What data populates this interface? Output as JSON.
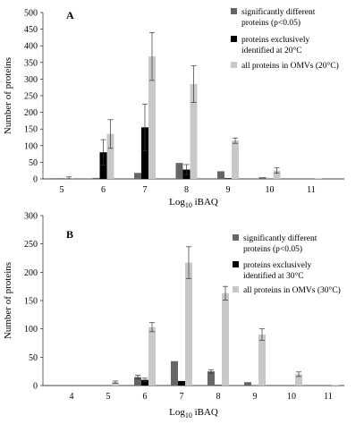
{
  "chart_data": [
    {
      "type": "bar",
      "panel": "A",
      "ylabel": "Number of proteins",
      "xlabel_base": "Log",
      "xlabel_sub": "10",
      "xlabel_rest": " iBAQ",
      "ylim": [
        0,
        500
      ],
      "yticks": [
        0,
        50,
        100,
        150,
        200,
        250,
        300,
        350,
        400,
        450,
        500
      ],
      "categories": [
        "5",
        "6",
        "7",
        "8",
        "9",
        "10",
        "11"
      ],
      "series": [
        {
          "name_lines": [
            "significantly different",
            "proteins (p<0.05)"
          ],
          "color": "#666666",
          "values": [
            2,
            3,
            18,
            48,
            23,
            5,
            0
          ],
          "errors": [
            0,
            0,
            0,
            0,
            0,
            0,
            0
          ]
        },
        {
          "name_lines": [
            "proteins exclusively",
            "identified at 20°C"
          ],
          "color": "#000000",
          "values": [
            1,
            80,
            155,
            28,
            2,
            0,
            0
          ],
          "errors": [
            0,
            38,
            70,
            15,
            0,
            0,
            0
          ]
        },
        {
          "name_lines": [
            "all proteins in OMVs (20°C)"
          ],
          "color": "#c8c8c8",
          "values": [
            3,
            135,
            368,
            285,
            115,
            25,
            1
          ],
          "errors": [
            3,
            43,
            72,
            55,
            8,
            8,
            0
          ]
        }
      ]
    },
    {
      "type": "bar",
      "panel": "B",
      "ylabel": "Number of proteins",
      "xlabel_base": "Log",
      "xlabel_sub": "10",
      "xlabel_rest": " iBAQ",
      "ylim": [
        0,
        300
      ],
      "yticks": [
        0,
        50,
        100,
        150,
        200,
        250,
        300
      ],
      "categories": [
        "4",
        "5",
        "6",
        "7",
        "8",
        "9",
        "10",
        "11"
      ],
      "series": [
        {
          "name_lines": [
            "significantly different",
            "proteins (p<0.05)"
          ],
          "color": "#666666",
          "values": [
            0,
            1,
            15,
            43,
            25,
            6,
            1,
            0
          ],
          "errors": [
            0,
            0,
            3,
            0,
            3,
            0,
            0,
            0
          ]
        },
        {
          "name_lines": [
            "proteins exclusively",
            "identified at 30°C"
          ],
          "color": "#000000",
          "values": [
            0,
            0,
            10,
            8,
            1,
            0,
            0,
            0
          ],
          "errors": [
            0,
            0,
            3,
            0,
            0,
            0,
            0,
            0
          ]
        },
        {
          "name_lines": [
            "all proteins in OMVs (30°C)"
          ],
          "color": "#c8c8c8",
          "values": [
            0,
            6,
            103,
            217,
            163,
            90,
            20,
            1
          ],
          "errors": [
            0,
            2,
            8,
            28,
            12,
            10,
            4,
            0
          ]
        }
      ]
    }
  ]
}
